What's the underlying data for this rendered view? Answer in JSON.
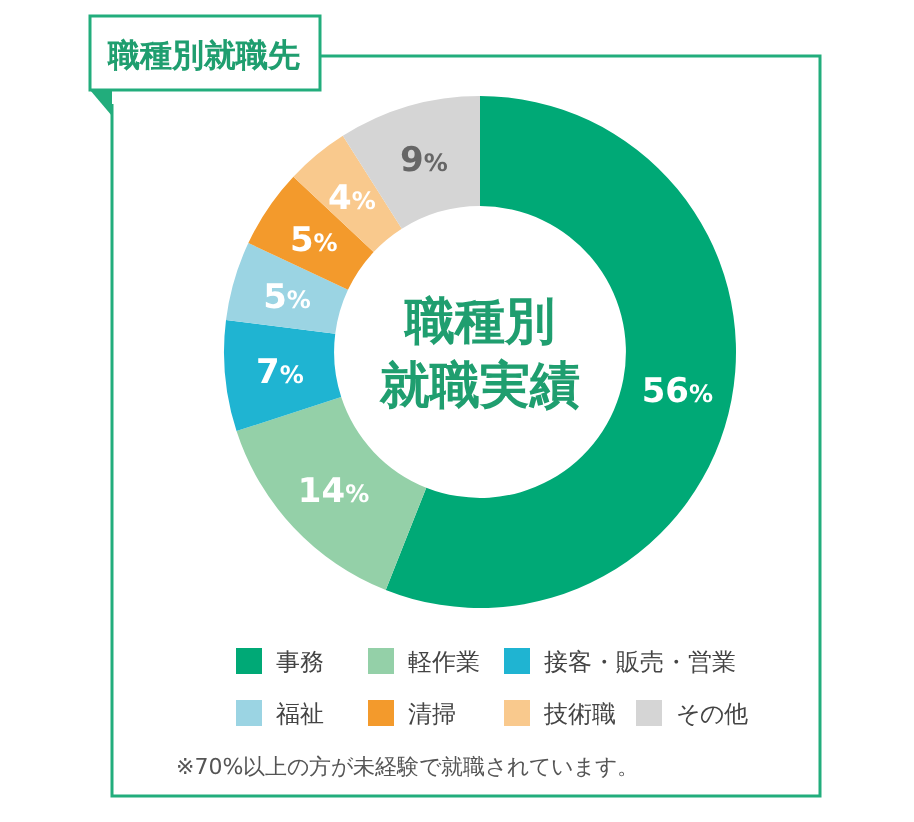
{
  "chart_data": {
    "type": "donut",
    "title": "職種別就職先",
    "subtitle": "職種別就職実績",
    "categories": [
      "事務",
      "軽作業",
      "接客・販売・営業",
      "福祉",
      "清掃",
      "技術職",
      "その他"
    ],
    "values": [
      56,
      14,
      7,
      5,
      5,
      4,
      9
    ],
    "colors": [
      "#00a976",
      "#94d0a8",
      "#1fb4d2",
      "#9bd4e3",
      "#f39a2c",
      "#f9c98d",
      "#d5d5d5"
    ],
    "value_labels": [
      "56%",
      "14%",
      "7%",
      "5%",
      "5%",
      "4%",
      "9%"
    ],
    "legend": "bottom",
    "annotations": [
      "※70%以上の方が未経験で就職されています。"
    ]
  }
}
